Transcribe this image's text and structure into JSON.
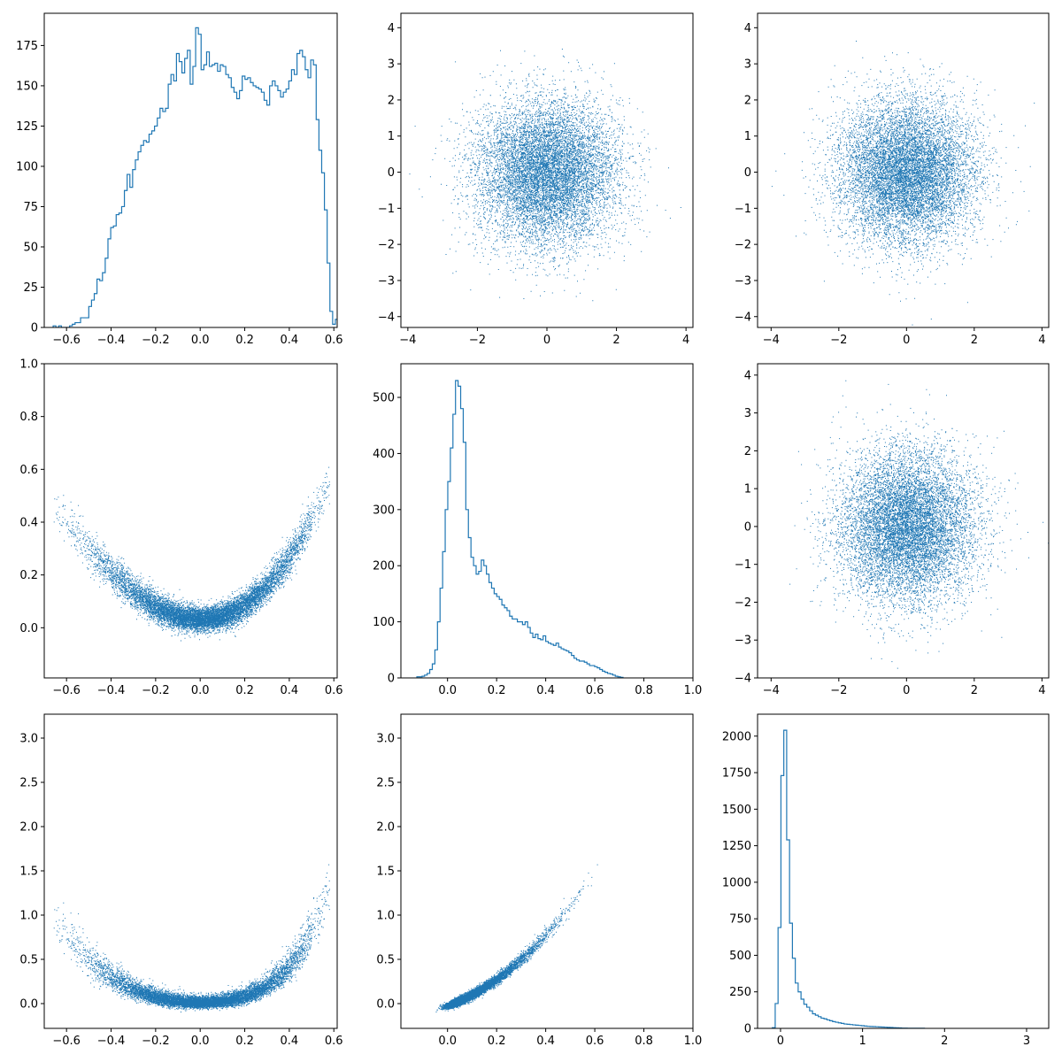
{
  "figure": {
    "layout": "3x3 corner plot (histograms on diagonal, scatter off-diagonal)",
    "color": "#1f77b4",
    "frame_color": "#000000"
  },
  "chart_data": [
    {
      "id": "p11",
      "type": "histogram",
      "xlim": [
        -0.7,
        0.615
      ],
      "ylim": [
        0,
        195
      ],
      "xticks": [
        -0.6,
        -0.4,
        -0.2,
        0.0,
        0.2,
        0.4,
        0.6
      ],
      "xtick_labels": [
        "−0.6",
        "−0.4",
        "−0.2",
        "0.0",
        "0.2",
        "0.4",
        "0.6"
      ],
      "yticks": [
        0,
        25,
        50,
        75,
        100,
        125,
        150,
        175
      ],
      "ytick_labels": [
        "0",
        "25",
        "50",
        "75",
        "100",
        "125",
        "150",
        "175"
      ],
      "bins_start": -0.66,
      "bin_width": 0.0123,
      "counts": [
        1,
        0,
        1,
        0,
        0,
        0,
        1,
        2,
        3,
        3,
        6,
        6,
        6,
        13,
        17,
        21,
        30,
        29,
        34,
        43,
        55,
        62,
        63,
        70,
        71,
        75,
        85,
        95,
        87,
        98,
        104,
        109,
        113,
        116,
        115,
        120,
        122,
        125,
        130,
        136,
        134,
        136,
        151,
        157,
        153,
        170,
        165,
        158,
        167,
        172,
        151,
        162,
        186,
        182,
        160,
        163,
        171,
        162,
        163,
        164,
        159,
        163,
        162,
        157,
        155,
        149,
        146,
        142,
        147,
        156,
        154,
        155,
        152,
        150,
        149,
        148,
        146,
        141,
        138,
        150,
        153,
        150,
        147,
        143,
        146,
        148,
        153,
        160,
        157,
        170,
        172,
        168,
        160,
        155,
        166,
        163,
        129,
        110,
        96,
        73,
        40,
        10,
        2,
        5
      ]
    },
    {
      "id": "p12",
      "type": "scatter",
      "xlim": [
        -4.2,
        4.2
      ],
      "ylim": [
        -4.3,
        4.4
      ],
      "xticks": [
        -4,
        -2,
        0,
        2,
        4
      ],
      "xtick_labels": [
        "−4",
        "−2",
        "0",
        "2",
        "4"
      ],
      "yticks": [
        -4,
        -3,
        -2,
        -1,
        0,
        1,
        2,
        3,
        4
      ],
      "ytick_labels": [
        "−4",
        "−3",
        "−2",
        "−1",
        "0",
        "1",
        "2",
        "3",
        "4"
      ],
      "distribution": "2D standard normal",
      "n_points": 10000,
      "x_mean": 0,
      "x_sd": 1,
      "y_mean": 0,
      "y_sd": 1
    },
    {
      "id": "p13",
      "type": "scatter",
      "xlim": [
        -4.4,
        4.2
      ],
      "ylim": [
        -4.3,
        4.4
      ],
      "xticks": [
        -4,
        -2,
        0,
        2,
        4
      ],
      "xtick_labels": [
        "−4",
        "−2",
        "0",
        "2",
        "4"
      ],
      "yticks": [
        -4,
        -3,
        -2,
        -1,
        0,
        1,
        2,
        3,
        4
      ],
      "ytick_labels": [
        "−4",
        "−3",
        "−2",
        "−1",
        "0",
        "1",
        "2",
        "3",
        "4"
      ],
      "distribution": "2D standard normal",
      "n_points": 10000,
      "x_mean": 0,
      "x_sd": 1,
      "y_mean": 0,
      "y_sd": 1
    },
    {
      "id": "p21",
      "type": "scatter",
      "xlim": [
        -0.7,
        0.615
      ],
      "ylim": [
        -0.19,
        1.0
      ],
      "xticks": [
        -0.6,
        -0.4,
        -0.2,
        0.0,
        0.2,
        0.4,
        0.6
      ],
      "xtick_labels": [
        "−0.6",
        "−0.4",
        "−0.2",
        "0.0",
        "0.2",
        "0.4",
        "0.6"
      ],
      "yticks": [
        0.0,
        0.2,
        0.4,
        0.6,
        0.8,
        1.0
      ],
      "ytick_labels": [
        "0.0",
        "0.2",
        "0.4",
        "0.6",
        "0.8",
        "1.0"
      ],
      "relation": "y ≈ 0.033 + 1.3·x² + 0.45·x³ with noise",
      "n_points": 10000
    },
    {
      "id": "p22",
      "type": "histogram",
      "xlim": [
        -0.19,
        1.0
      ],
      "ylim": [
        0,
        560
      ],
      "xticks": [
        0.0,
        0.2,
        0.4,
        0.6,
        0.8,
        1.0
      ],
      "xtick_labels": [
        "0.0",
        "0.2",
        "0.4",
        "0.6",
        "0.8",
        "1.0"
      ],
      "yticks": [
        0,
        100,
        200,
        300,
        400,
        500
      ],
      "ytick_labels": [
        "0",
        "100",
        "200",
        "300",
        "400",
        "500"
      ],
      "bins_start": -0.125,
      "bin_width": 0.0105,
      "counts": [
        2,
        2,
        3,
        5,
        8,
        15,
        25,
        50,
        100,
        160,
        225,
        300,
        350,
        410,
        470,
        530,
        520,
        480,
        420,
        300,
        250,
        215,
        200,
        185,
        190,
        210,
        200,
        185,
        170,
        160,
        150,
        145,
        140,
        130,
        125,
        120,
        110,
        105,
        105,
        100,
        100,
        95,
        100,
        90,
        80,
        72,
        78,
        70,
        68,
        75,
        65,
        62,
        60,
        58,
        62,
        55,
        52,
        50,
        48,
        45,
        40,
        35,
        32,
        30,
        30,
        28,
        25,
        22,
        22,
        20,
        18,
        15,
        12,
        10,
        8,
        7,
        5,
        3,
        2,
        1
      ]
    },
    {
      "id": "p23",
      "type": "scatter",
      "xlim": [
        -4.4,
        4.2
      ],
      "ylim": [
        -4.0,
        4.3
      ],
      "xticks": [
        -4,
        -2,
        0,
        2,
        4
      ],
      "xtick_labels": [
        "−4",
        "−2",
        "0",
        "2",
        "4"
      ],
      "yticks": [
        -4,
        -3,
        -2,
        -1,
        0,
        1,
        2,
        3,
        4
      ],
      "ytick_labels": [
        "−4",
        "−3",
        "−2",
        "−1",
        "0",
        "1",
        "2",
        "3",
        "4"
      ],
      "distribution": "2D standard normal",
      "n_points": 10000,
      "x_mean": 0,
      "x_sd": 1,
      "y_mean": 0,
      "y_sd": 1
    },
    {
      "id": "p31",
      "type": "scatter",
      "xlim": [
        -0.7,
        0.615
      ],
      "ylim": [
        -0.28,
        3.27
      ],
      "xticks": [
        -0.6,
        -0.4,
        -0.2,
        0.0,
        0.2,
        0.4,
        0.6
      ],
      "xtick_labels": [
        "−0.6",
        "−0.4",
        "−0.2",
        "0.0",
        "0.2",
        "0.4",
        "0.6"
      ],
      "yticks": [
        0.0,
        0.5,
        1.0,
        1.5,
        2.0,
        2.5,
        3.0
      ],
      "ytick_labels": [
        "0.0",
        "0.5",
        "1.0",
        "1.5",
        "2.0",
        "2.5",
        "3.0"
      ],
      "relation": "z ≈ y + 2.5·y² with noise, y from p21",
      "n_points": 10000
    },
    {
      "id": "p32",
      "type": "scatter",
      "xlim": [
        -0.19,
        1.0
      ],
      "ylim": [
        -0.28,
        3.27
      ],
      "xticks": [
        0.0,
        0.2,
        0.4,
        0.6,
        0.8,
        1.0
      ],
      "xtick_labels": [
        "0.0",
        "0.2",
        "0.4",
        "0.6",
        "0.8",
        "1.0"
      ],
      "yticks": [
        0.0,
        0.5,
        1.0,
        1.5,
        2.0,
        2.5,
        3.0
      ],
      "ytick_labels": [
        "0.0",
        "0.5",
        "1.0",
        "1.5",
        "2.0",
        "2.5",
        "3.0"
      ],
      "relation": "z ≈ y + 2.5·y² with noise",
      "n_points": 10000
    },
    {
      "id": "p33",
      "type": "histogram",
      "xlim": [
        -0.28,
        3.27
      ],
      "ylim": [
        0,
        2150
      ],
      "xticks": [
        0,
        1,
        2,
        3
      ],
      "xtick_labels": [
        "0",
        "1",
        "2",
        "3"
      ],
      "yticks": [
        0,
        250,
        500,
        750,
        1000,
        1250,
        1500,
        1750,
        2000
      ],
      "ytick_labels": [
        "0",
        "250",
        "500",
        "750",
        "1000",
        "1250",
        "1500",
        "1750",
        "2000"
      ],
      "bins_start": -0.1,
      "bin_width": 0.035,
      "counts": [
        5,
        170,
        690,
        1730,
        2040,
        1290,
        720,
        480,
        310,
        250,
        200,
        165,
        145,
        120,
        100,
        90,
        80,
        70,
        65,
        58,
        52,
        46,
        42,
        38,
        34,
        30,
        28,
        26,
        24,
        22,
        20,
        18,
        16,
        14,
        13,
        12,
        11,
        10,
        9,
        8,
        7,
        6,
        5,
        4,
        3,
        2,
        2,
        1,
        1,
        1,
        1,
        1,
        1
      ]
    }
  ]
}
